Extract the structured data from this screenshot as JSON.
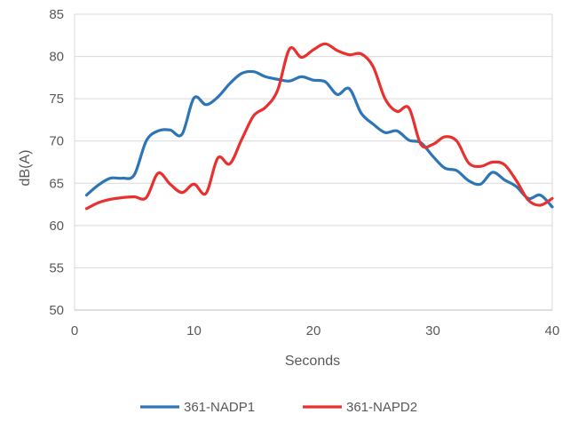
{
  "chart_data": {
    "type": "line",
    "xlabel": "Seconds",
    "ylabel": "dB(A)",
    "xlim": [
      0,
      40
    ],
    "ylim": [
      50,
      85
    ],
    "xticks": [
      0,
      10,
      20,
      30,
      40
    ],
    "yticks": [
      50,
      55,
      60,
      65,
      70,
      75,
      80,
      85
    ],
    "grid": "horizontal",
    "legend": "bottom",
    "series": [
      {
        "name": "361-NADP1",
        "color": "#2e75b6",
        "x": [
          1,
          2,
          3,
          4,
          5,
          6,
          7,
          8,
          9,
          10,
          11,
          12,
          13,
          14,
          15,
          16,
          17,
          18,
          19,
          20,
          21,
          22,
          23,
          24,
          25,
          26,
          27,
          28,
          29,
          30,
          31,
          32,
          33,
          34,
          35,
          36,
          37,
          38,
          39,
          40
        ],
        "values": [
          63.6,
          64.8,
          65.6,
          65.6,
          66.0,
          70.0,
          71.2,
          71.3,
          70.8,
          75.1,
          74.3,
          75.2,
          76.8,
          78.0,
          78.2,
          77.6,
          77.3,
          77.1,
          77.6,
          77.2,
          77.0,
          75.5,
          76.2,
          73.3,
          72.0,
          71.0,
          71.2,
          70.1,
          69.8,
          68.2,
          66.8,
          66.5,
          65.3,
          64.9,
          66.3,
          65.4,
          64.6,
          63.2,
          63.6,
          62.2
        ]
      },
      {
        "name": "361-NAPD2",
        "color": "#e8312f",
        "x": [
          1,
          2,
          3,
          4,
          5,
          6,
          7,
          8,
          9,
          10,
          11,
          12,
          13,
          14,
          15,
          16,
          17,
          18,
          19,
          20,
          21,
          22,
          23,
          24,
          25,
          26,
          27,
          28,
          29,
          30,
          31,
          32,
          33,
          34,
          35,
          36,
          37,
          38,
          39,
          40
        ],
        "values": [
          62.0,
          62.7,
          63.1,
          63.3,
          63.4,
          63.3,
          66.2,
          64.9,
          63.9,
          64.9,
          63.8,
          68.0,
          67.3,
          70.2,
          73.0,
          74.0,
          76.0,
          80.9,
          79.9,
          80.8,
          81.5,
          80.7,
          80.2,
          80.3,
          78.8,
          75.0,
          73.5,
          73.9,
          69.6,
          69.6,
          70.5,
          70.0,
          67.4,
          67.0,
          67.5,
          67.2,
          65.3,
          63.0,
          62.4,
          63.2
        ]
      }
    ]
  }
}
